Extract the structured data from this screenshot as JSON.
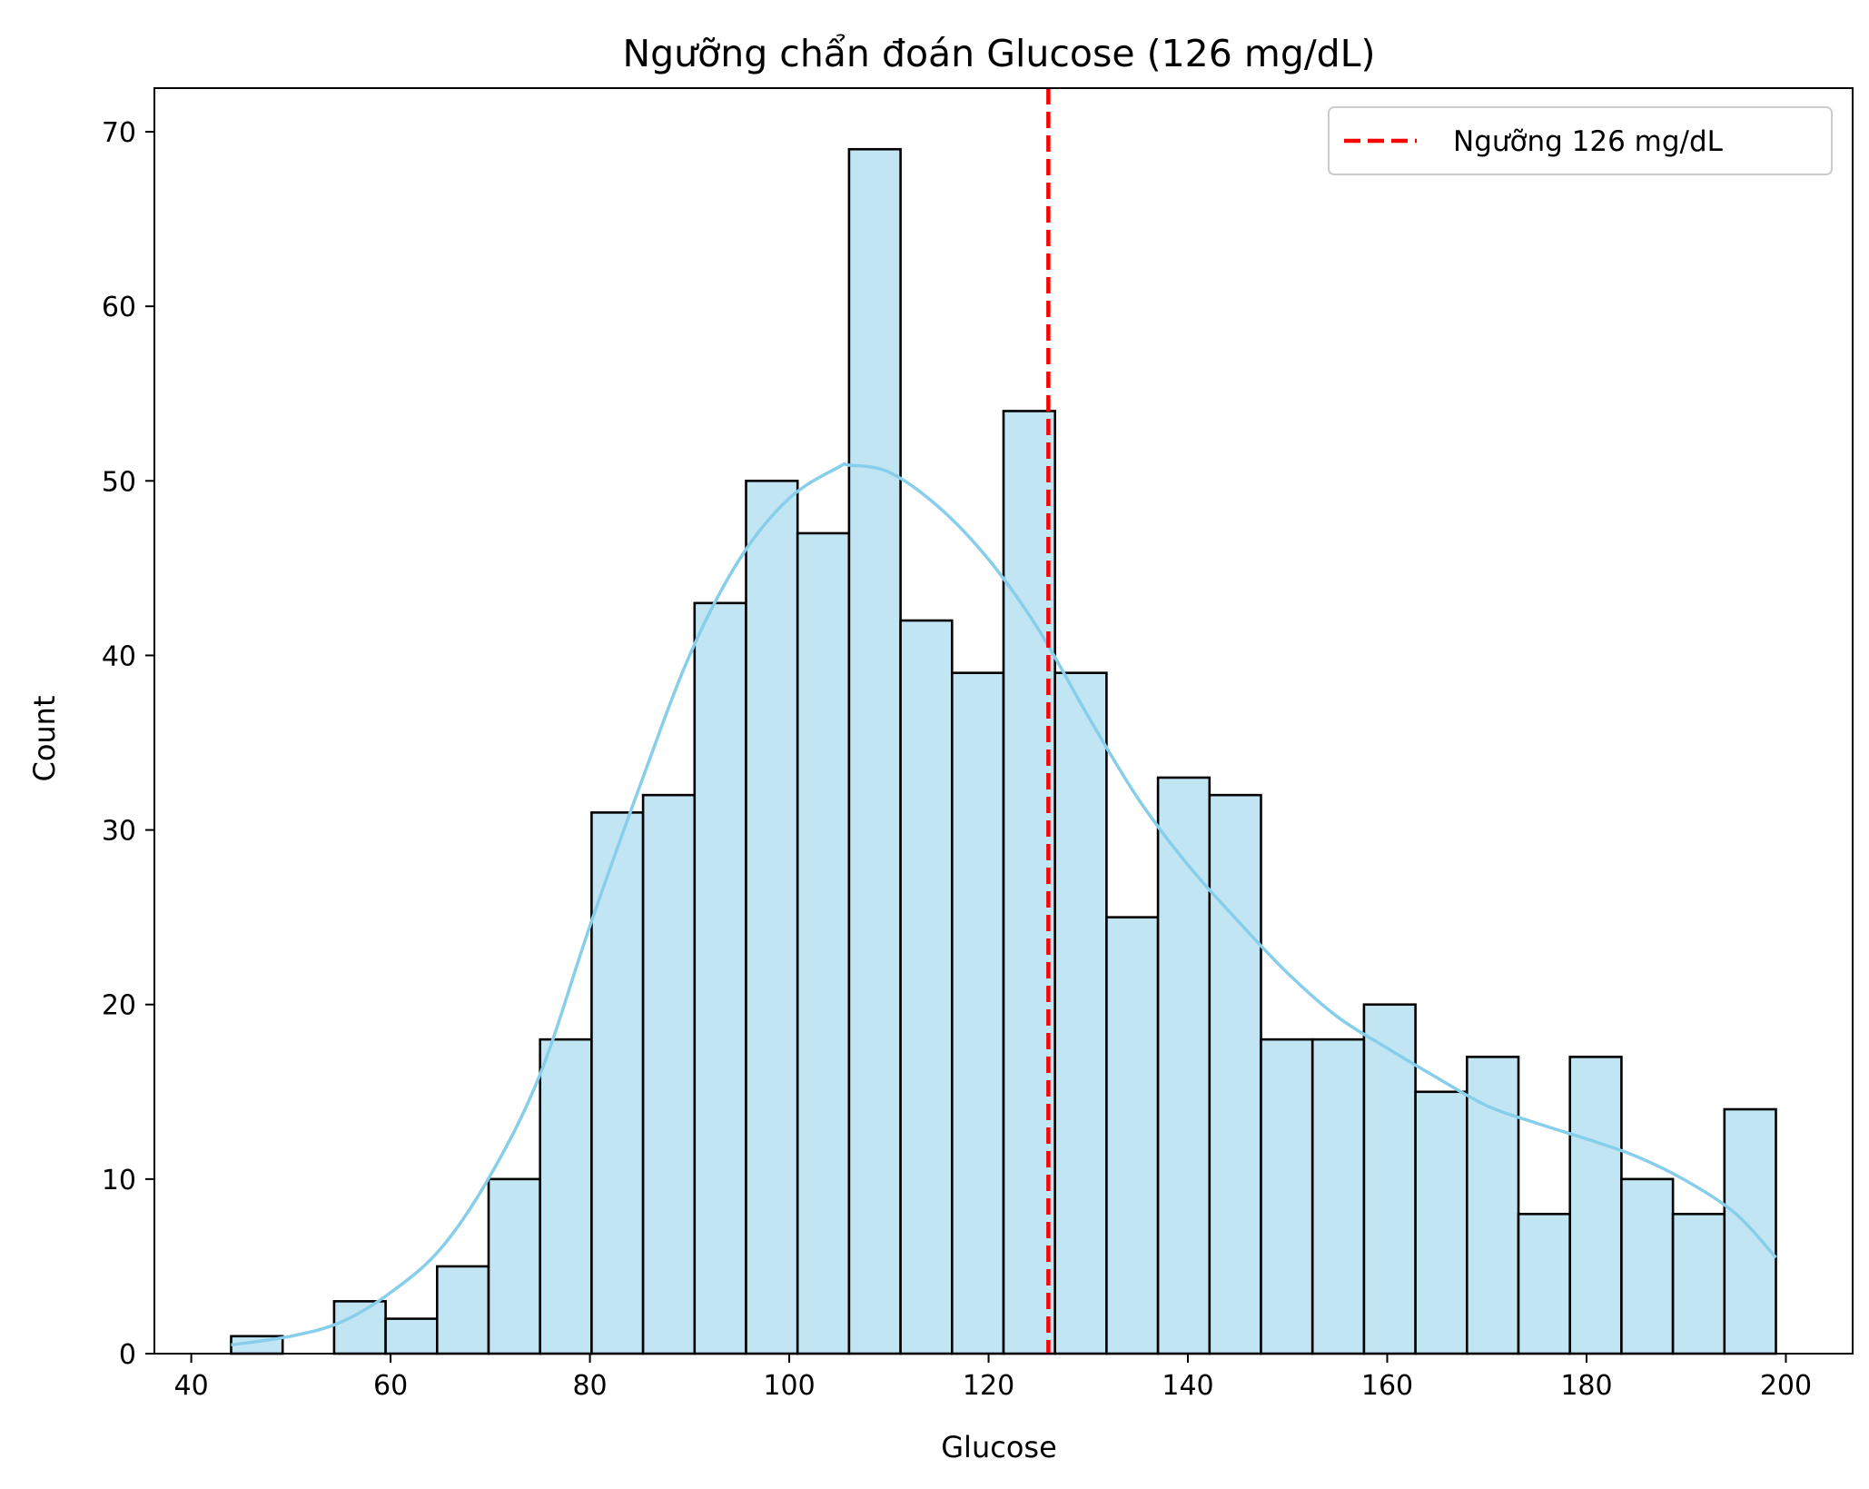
{
  "chart_data": {
    "type": "bar",
    "title": "Ngưỡng chẩn đoán Glucose (126 mg/dL)",
    "xlabel": "Glucose",
    "ylabel": "Count",
    "xlim": [
      36.3,
      206.7
    ],
    "ylim": [
      0,
      72.5
    ],
    "x_ticks": [
      40,
      60,
      80,
      100,
      120,
      140,
      160,
      180,
      200
    ],
    "y_ticks": [
      0,
      10,
      20,
      30,
      40,
      50,
      60,
      70
    ],
    "bin_start": 44,
    "bin_width": 5.1667,
    "counts": [
      1,
      0,
      3,
      2,
      5,
      10,
      18,
      31,
      32,
      43,
      50,
      47,
      69,
      42,
      39,
      54,
      39,
      25,
      33,
      32,
      18,
      18,
      20,
      15,
      17,
      8,
      17,
      10,
      8,
      14
    ],
    "kde": {
      "x": [
        44,
        50,
        55,
        60,
        65,
        70,
        75,
        80,
        85,
        90,
        95,
        100,
        105,
        106,
        110,
        115,
        120,
        125,
        130,
        135,
        140,
        145,
        150,
        155,
        160,
        165,
        170,
        175,
        180,
        185,
        190,
        195,
        199
      ],
      "y": [
        0.5,
        1.0,
        1.8,
        3.5,
        6.0,
        10.2,
        16.0,
        24.5,
        32.5,
        40.0,
        45.5,
        49.0,
        50.8,
        50.9,
        50.5,
        48.5,
        45.5,
        41.5,
        36.5,
        31.8,
        28.0,
        24.8,
        21.8,
        19.3,
        17.5,
        15.8,
        14.2,
        13.2,
        12.3,
        11.3,
        9.9,
        8.0,
        5.5
      ]
    },
    "threshold": {
      "x": 126,
      "label": "Ngưỡng 126 mg/dL",
      "color": "#ff0000"
    },
    "bar_fill": "#c2e5f4",
    "bar_edge": "#000000",
    "kde_color": "#87ceeb",
    "legend_position": "top-right",
    "grid": false
  }
}
